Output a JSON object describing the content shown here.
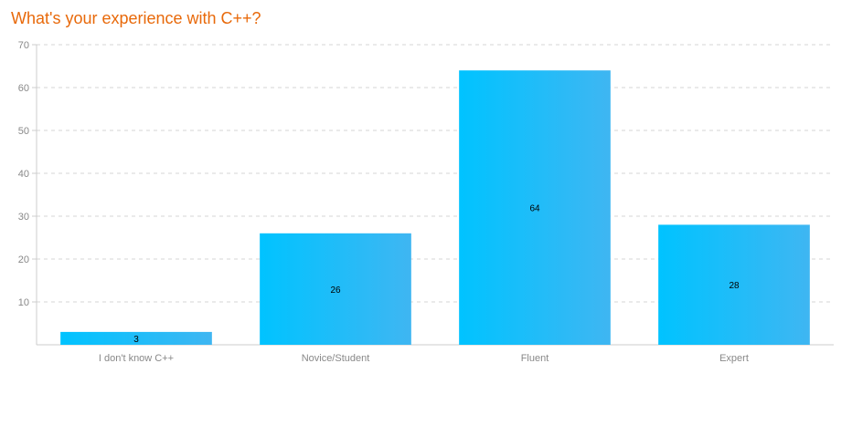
{
  "chart_data": {
    "type": "bar",
    "title": "What's your experience with C++?",
    "categories": [
      "I don't know C++",
      "Novice/Student",
      "Fluent",
      "Expert"
    ],
    "values": [
      3,
      26,
      64,
      28
    ],
    "data_labels": [
      "3",
      "26",
      "64",
      "28"
    ],
    "yticks": [
      "10",
      "20",
      "30",
      "40",
      "50",
      "60",
      "70"
    ],
    "ylim": [
      0,
      70
    ],
    "grid": true,
    "legend": "none"
  },
  "colors": {
    "title": "#e8690a",
    "bar_left": "#00c3ff",
    "bar_right": "#3fb6f2",
    "grid": "#d5d5d5",
    "axis": "#cccccc"
  }
}
